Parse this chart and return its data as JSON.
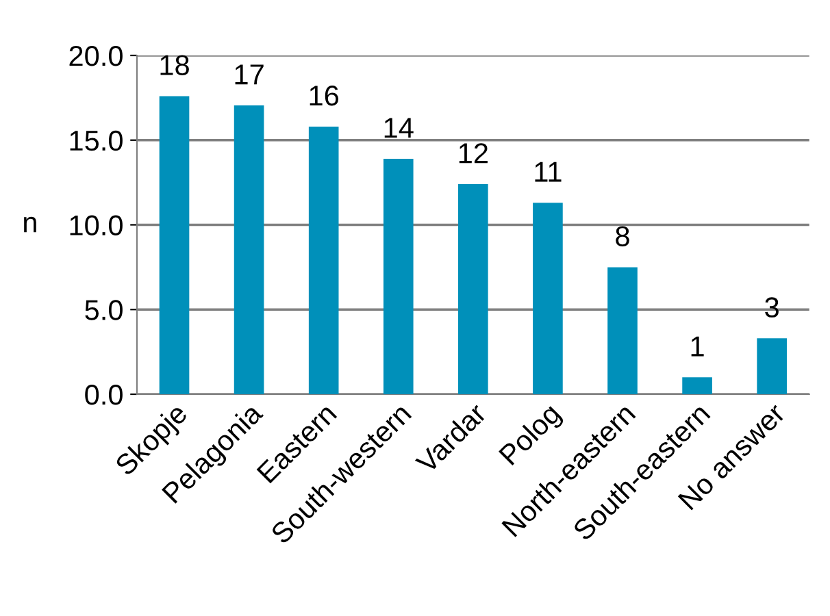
{
  "chart_data": {
    "type": "bar",
    "ylabel": "n",
    "categories": [
      "Skopje",
      "Pelagonia",
      "Eastern",
      "South-western",
      "Vardar",
      "Polog",
      "North-eastern",
      "South-eastern",
      "No answer"
    ],
    "values": [
      17.6,
      17.05,
      15.8,
      13.9,
      12.4,
      11.3,
      7.5,
      1.0,
      3.3
    ],
    "value_labels": [
      "18",
      "17",
      "16",
      "14",
      "12",
      "11",
      "8",
      "1",
      "3"
    ],
    "color": "#0090ba",
    "ylim": [
      0,
      20
    ],
    "yticks": [
      {
        "value": 0,
        "label": "0.0"
      },
      {
        "value": 5,
        "label": "5.0"
      },
      {
        "value": 10,
        "label": "10.0"
      },
      {
        "value": 15,
        "label": "15.0"
      },
      {
        "value": 20,
        "label": "20.0"
      }
    ],
    "grid": "y"
  }
}
